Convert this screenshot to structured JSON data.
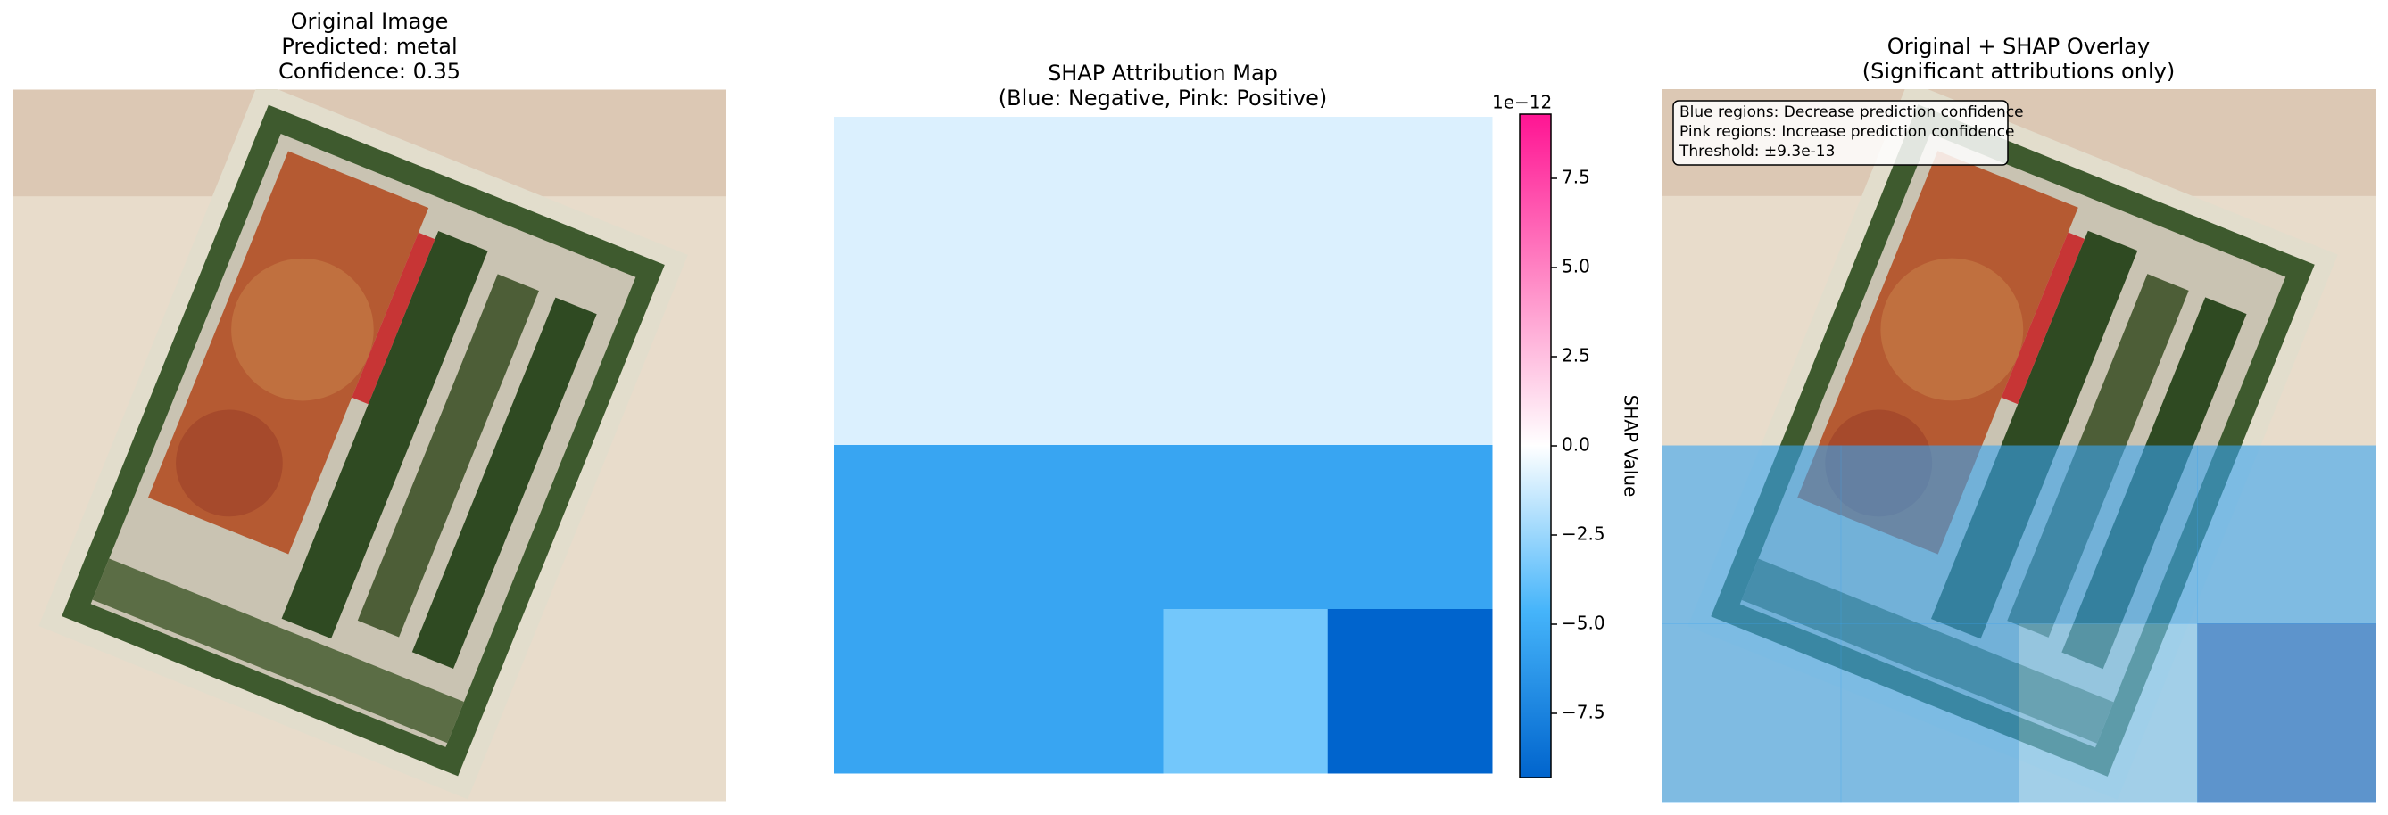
{
  "panels": {
    "original": {
      "title": [
        "Original Image",
        "Predicted: metal",
        "Confidence: 0.35"
      ]
    },
    "overlay": {
      "title": [
        "Original + SHAP Overlay",
        "(Significant attributions only)"
      ],
      "annotation": [
        "Blue regions: Decrease prediction confidence",
        "Pink regions: Increase prediction confidence",
        "Threshold: ±9.3e-13"
      ]
    }
  },
  "chart_data": {
    "type": "heatmap",
    "title": [
      "SHAP Attribution Map",
      "(Blue: Negative, Pink: Positive)"
    ],
    "values": [
      [
        -0.9,
        -0.9,
        -0.9,
        -0.9
      ],
      [
        -0.9,
        -0.9,
        -0.9,
        -0.9
      ],
      [
        -5.5,
        -5.5,
        -5.5,
        -5.5
      ],
      [
        -5.5,
        -5.5,
        -3.5,
        -9.3
      ]
    ],
    "colormap": [
      "#0064cd",
      "#45b4fa",
      "#ffffff",
      "#ff8ac6",
      "#ff1493"
    ],
    "colorbar_label": "SHAP Value",
    "colorbar_offset": "1e−12",
    "clim": [
      -9.3,
      9.3
    ],
    "cticks": [
      {
        "value": -7.5,
        "label": "−7.5"
      },
      {
        "value": -5,
        "label": "−5.0"
      },
      {
        "value": -2.5,
        "label": "−2.5"
      },
      {
        "value": 0,
        "label": "0.0"
      },
      2.5,
      {
        "value": 5,
        "label": "5.0"
      },
      7.5
    ]
  }
}
